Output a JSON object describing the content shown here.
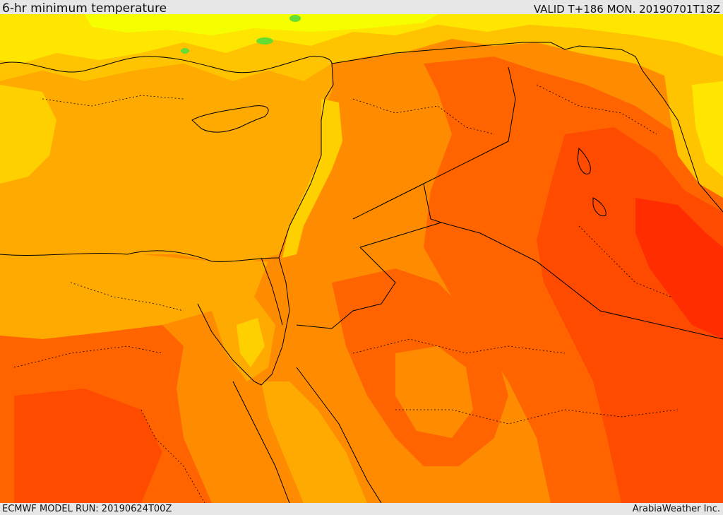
{
  "header": {
    "title": "6-hr minimum temperature",
    "valid": "VALID T+186 MON. 20190701T18Z"
  },
  "footer": {
    "model_run": "ECMWF MODEL RUN: 20190624T00Z",
    "credit": "ArabiaWeather Inc."
  },
  "map": {
    "palette": {
      "green": "#66dd33",
      "yellow_light": "#f6ff00",
      "yellow": "#ffe600",
      "amber": "#ffc300",
      "orange_light": "#ffaa00",
      "orange": "#ff8c00",
      "orange_dark": "#ff6400",
      "red_orange": "#ff4b00",
      "red": "#ff2d00"
    }
  }
}
